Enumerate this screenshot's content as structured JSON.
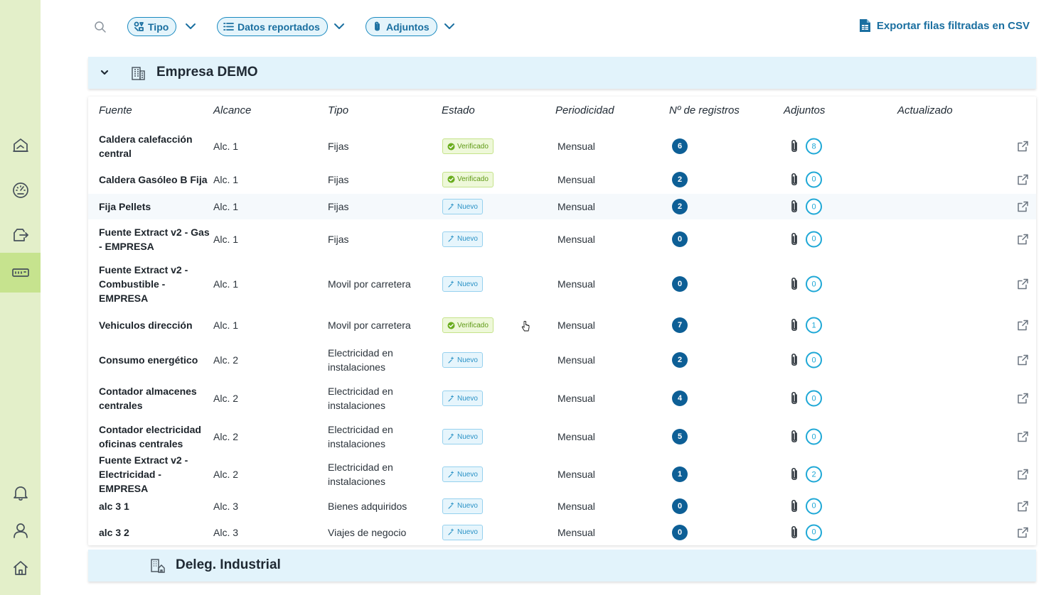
{
  "toolbar": {
    "filters": [
      {
        "label": "Tipo",
        "icon": "shapes-icon"
      },
      {
        "label": "Datos reportados",
        "icon": "list-icon"
      },
      {
        "label": "Adjuntos",
        "icon": "paperclip-icon"
      }
    ],
    "export_label": "Exportar filas filtradas en CSV"
  },
  "groups": [
    {
      "name": "Empresa DEMO",
      "expanded": true
    },
    {
      "name": "Deleg. Industrial",
      "expanded": false
    }
  ],
  "table": {
    "columns": [
      "Fuente",
      "Alcance",
      "Tipo",
      "Estado",
      "Periodicidad",
      "Nº de registros",
      "Adjuntos",
      "Actualizado"
    ],
    "rows": [
      {
        "fuente": "Caldera calefacción central",
        "alcance": "Alc. 1",
        "tipo": "Fijas",
        "estado": "Verificado",
        "periodicidad": "Mensual",
        "registros": "6",
        "adjuntos": "8",
        "actualizado": ""
      },
      {
        "fuente": "Caldera Gasóleo B Fija",
        "alcance": "Alc. 1",
        "tipo": "Fijas",
        "estado": "Verificado",
        "periodicidad": "Mensual",
        "registros": "2",
        "adjuntos": "0",
        "actualizado": ""
      },
      {
        "fuente": "Fija Pellets",
        "alcance": "Alc. 1",
        "tipo": "Fijas",
        "estado": "Nuevo",
        "periodicidad": "Mensual",
        "registros": "2",
        "adjuntos": "0",
        "actualizado": ""
      },
      {
        "fuente": "Fuente Extract v2 - Gas - EMPRESA",
        "alcance": "Alc. 1",
        "tipo": "Fijas",
        "estado": "Nuevo",
        "periodicidad": "Mensual",
        "registros": "0",
        "adjuntos": "0",
        "actualizado": ""
      },
      {
        "fuente": "Fuente Extract v2 - Combustible - EMPRESA",
        "alcance": "Alc. 1",
        "tipo": "Movil por carretera",
        "estado": "Nuevo",
        "periodicidad": "Mensual",
        "registros": "0",
        "adjuntos": "0",
        "actualizado": ""
      },
      {
        "fuente": "Vehiculos dirección",
        "alcance": "Alc. 1",
        "tipo": "Movil por carretera",
        "estado": "Verificado",
        "periodicidad": "Mensual",
        "registros": "7",
        "adjuntos": "1",
        "actualizado": ""
      },
      {
        "fuente": "Consumo energético",
        "alcance": "Alc. 2",
        "tipo": "Electricidad en instalaciones",
        "estado": "Nuevo",
        "periodicidad": "Mensual",
        "registros": "2",
        "adjuntos": "0",
        "actualizado": ""
      },
      {
        "fuente": "Contador almacenes centrales",
        "alcance": "Alc. 2",
        "tipo": "Electricidad en instalaciones",
        "estado": "Nuevo",
        "periodicidad": "Mensual",
        "registros": "4",
        "adjuntos": "0",
        "actualizado": ""
      },
      {
        "fuente": "Contador electricidad oficinas centrales",
        "alcance": "Alc. 2",
        "tipo": "Electricidad en instalaciones",
        "estado": "Nuevo",
        "periodicidad": "Mensual",
        "registros": "5",
        "adjuntos": "0",
        "actualizado": ""
      },
      {
        "fuente": "Fuente Extract v2 - Electricidad - EMPRESA",
        "alcance": "Alc. 2",
        "tipo": "Electricidad en instalaciones",
        "estado": "Nuevo",
        "periodicidad": "Mensual",
        "registros": "1",
        "adjuntos": "2",
        "actualizado": ""
      },
      {
        "fuente": "alc 3 1",
        "alcance": "Alc. 3",
        "tipo": "Bienes adquiridos",
        "estado": "Nuevo",
        "periodicidad": "Mensual",
        "registros": "0",
        "adjuntos": "0",
        "actualizado": ""
      },
      {
        "fuente": "alc 3 2",
        "alcance": "Alc. 3",
        "tipo": "Viajes de negocio",
        "estado": "Nuevo",
        "periodicidad": "Mensual",
        "registros": "0",
        "adjuntos": "0",
        "actualizado": ""
      }
    ]
  },
  "colors": {
    "sidebar_bg": "#e3efc9",
    "sidebar_active": "#c6e38e",
    "accent": "#1a6fa0",
    "group_header_bg": "#e2f3fb",
    "count_badge": "#0d5f96",
    "verified": "#5f9a16",
    "new": "#2a92c6"
  }
}
